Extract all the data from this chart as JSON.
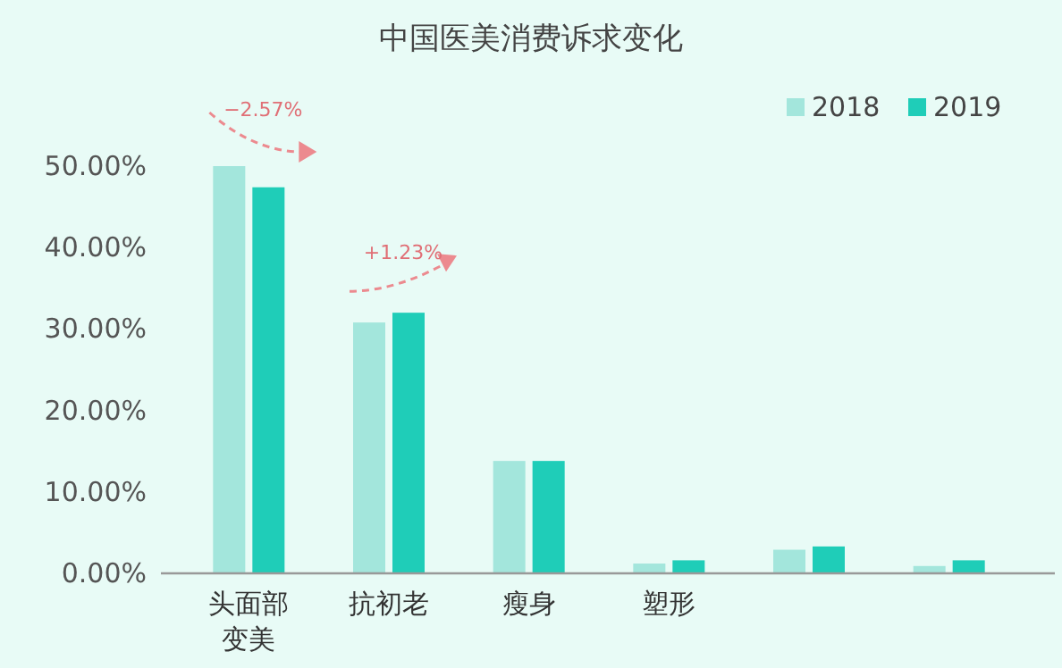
{
  "chart_data": {
    "type": "bar",
    "title": "中国医美消费诉求变化",
    "categories": [
      "头面部变美",
      "抗初老",
      "瘦身",
      "塑形",
      null,
      null
    ],
    "series": [
      {
        "name": "2018",
        "color": "#a3e6dc",
        "values": [
          50.0,
          30.8,
          13.8,
          1.2,
          2.9,
          0.9
        ]
      },
      {
        "name": "2019",
        "color": "#1fcdb8",
        "values": [
          47.4,
          32.0,
          13.8,
          1.6,
          3.3,
          1.6
        ]
      }
    ],
    "ylim": [
      0,
      50
    ],
    "yticks": [
      {
        "value": 0,
        "label": "0.00%"
      },
      {
        "value": 10,
        "label": "10.00%"
      },
      {
        "value": 20,
        "label": "20.00%"
      },
      {
        "value": 30,
        "label": "30.00%"
      },
      {
        "value": 40,
        "label": "40.00%"
      },
      {
        "value": 50,
        "label": "50.00%"
      }
    ],
    "legend": "top right",
    "annotations": [
      "−2.57%",
      "+1.23%"
    ]
  }
}
